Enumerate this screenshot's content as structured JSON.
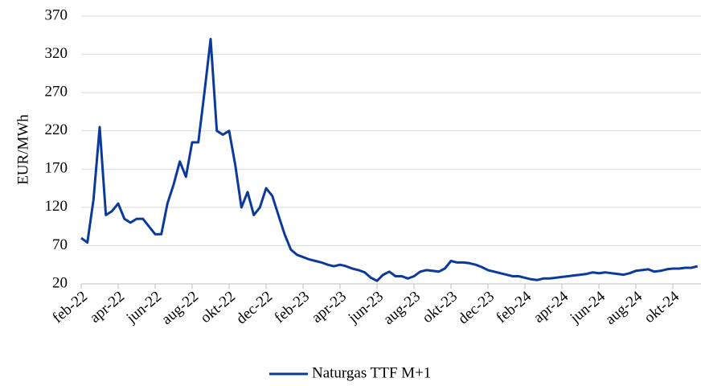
{
  "chart_data": {
    "type": "line",
    "categories": [
      "feb-22",
      null,
      null,
      null,
      null,
      null,
      "apr-22",
      null,
      null,
      null,
      null,
      null,
      "jun-22",
      null,
      null,
      null,
      null,
      null,
      "aug-22",
      null,
      null,
      null,
      null,
      null,
      "okt-22",
      null,
      null,
      null,
      null,
      null,
      "dec-22",
      null,
      null,
      null,
      null,
      null,
      "feb-23",
      null,
      null,
      null,
      null,
      null,
      "apr-23",
      null,
      null,
      null,
      null,
      null,
      "jun-23",
      null,
      null,
      null,
      null,
      null,
      "aug-23",
      null,
      null,
      null,
      null,
      null,
      "okt-23",
      null,
      null,
      null,
      null,
      null,
      "dec-23",
      null,
      null,
      null,
      null,
      null,
      "feb-24",
      null,
      null,
      null,
      null,
      null,
      "apr-24",
      null,
      null,
      null,
      null,
      null,
      "jun-24",
      null,
      null,
      null,
      null,
      null,
      "aug-24",
      null,
      null,
      null,
      null,
      null,
      "okt-24",
      null,
      null,
      null,
      null
    ],
    "series": [
      {
        "name": "Naturgas TTF M+1",
        "color": "#0b3a9a",
        "values": [
          80,
          74,
          130,
          225,
          110,
          115,
          125,
          105,
          100,
          105,
          105,
          95,
          85,
          85,
          125,
          150,
          180,
          160,
          205,
          205,
          270,
          340,
          220,
          215,
          220,
          175,
          120,
          140,
          110,
          120,
          145,
          135,
          110,
          85,
          65,
          58,
          55,
          52,
          50,
          48,
          45,
          43,
          45,
          43,
          40,
          38,
          35,
          28,
          24,
          32,
          36,
          30,
          30,
          27,
          30,
          36,
          38,
          37,
          36,
          40,
          50,
          48,
          48,
          47,
          45,
          42,
          38,
          36,
          34,
          32,
          30,
          30,
          28,
          26,
          25,
          27,
          27,
          28,
          29,
          30,
          31,
          32,
          33,
          35,
          34,
          35,
          34,
          33,
          32,
          34,
          37,
          38,
          39,
          36,
          37,
          39,
          40,
          40,
          41,
          41,
          43
        ]
      }
    ],
    "y_label": "EUR/MWh",
    "ylim": [
      20,
      370
    ],
    "yticks": [
      20,
      70,
      120,
      170,
      220,
      270,
      320,
      370
    ],
    "grid": true,
    "legend": "bottom"
  }
}
